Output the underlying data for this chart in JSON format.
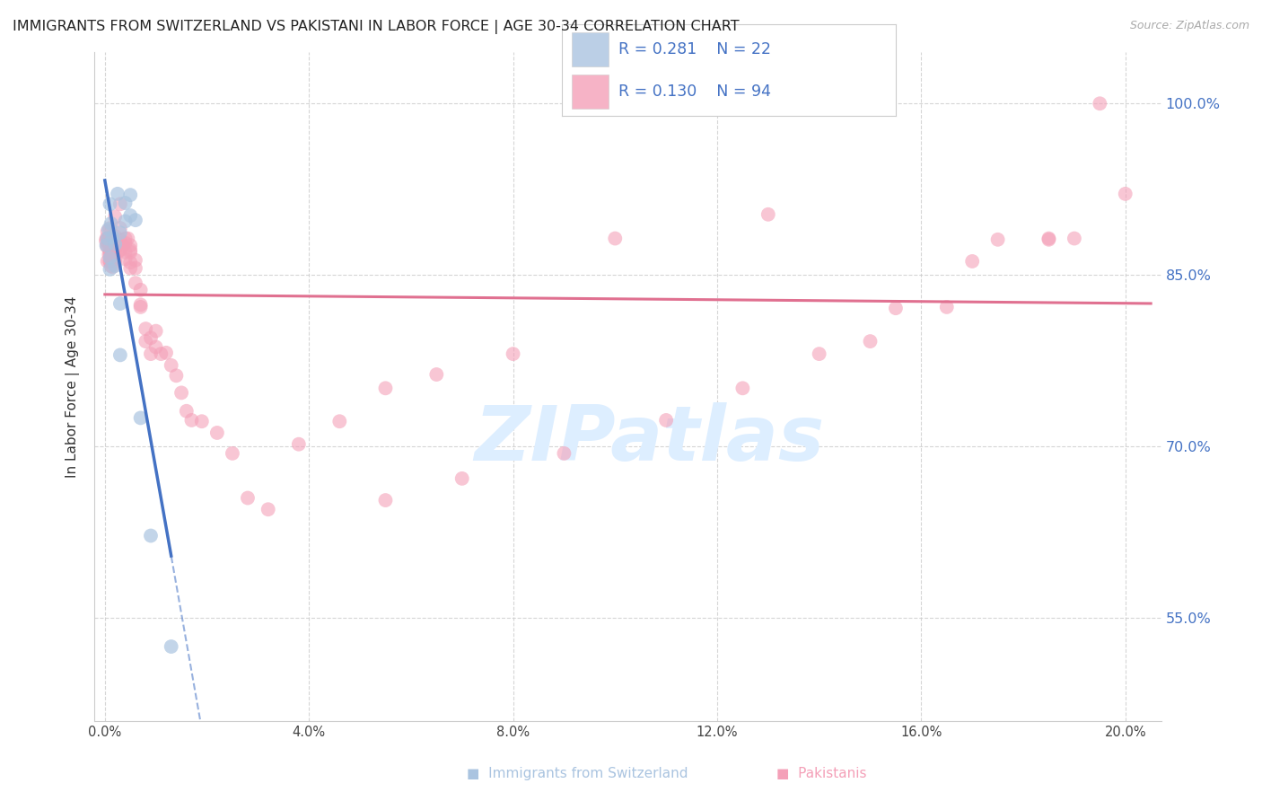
{
  "title": "IMMIGRANTS FROM SWITZERLAND VS PAKISTANI IN LABOR FORCE | AGE 30-34 CORRELATION CHART",
  "source": "Source: ZipAtlas.com",
  "ylabel": "In Labor Force | Age 30-34",
  "right_ytick_vals": [
    0.55,
    0.7,
    0.85,
    1.0
  ],
  "right_ytick_labels": [
    "55.0%",
    "70.0%",
    "85.0%",
    "100.0%"
  ],
  "xtick_vals": [
    0.0,
    0.04,
    0.08,
    0.12,
    0.16,
    0.2
  ],
  "xtick_labels": [
    "0.0%",
    "4.0%",
    "8.0%",
    "12.0%",
    "16.0%",
    "20.0%"
  ],
  "xlim": [
    -0.002,
    0.207
  ],
  "ylim": [
    0.46,
    1.045
  ],
  "swiss_R": 0.281,
  "swiss_N": 22,
  "pak_R": 0.13,
  "pak_N": 94,
  "swiss_scatter_color": "#aac4e0",
  "swiss_line_color": "#4472c4",
  "pak_scatter_color": "#f4a0b8",
  "pak_line_color": "#e07090",
  "legend_text_color": "#4472c4",
  "legend_R_color": "#4472c4",
  "watermark": "ZIPatlas",
  "watermark_color": "#ddeeff",
  "grid_color": "#cccccc",
  "bg_color": "#ffffff",
  "title_color": "#222222",
  "source_color": "#aaaaaa",
  "ylabel_color": "#333333",
  "tick_label_color": "#4472c4",
  "swiss_label": "Immigrants from Switzerland",
  "pak_label": "Pakistanis",
  "swiss_x": [
    0.0003,
    0.0005,
    0.0007,
    0.001,
    0.001,
    0.001,
    0.0012,
    0.0015,
    0.002,
    0.002,
    0.0025,
    0.003,
    0.003,
    0.003,
    0.004,
    0.004,
    0.005,
    0.005,
    0.006,
    0.007,
    0.009,
    0.013
  ],
  "swiss_y": [
    0.876,
    0.882,
    0.89,
    0.912,
    0.865,
    0.855,
    0.895,
    0.883,
    0.877,
    0.858,
    0.921,
    0.825,
    0.887,
    0.78,
    0.913,
    0.897,
    0.92,
    0.902,
    0.898,
    0.725,
    0.622,
    0.525
  ],
  "pak_x": [
    0.0002,
    0.0003,
    0.0004,
    0.0005,
    0.0005,
    0.0006,
    0.0007,
    0.0008,
    0.0009,
    0.001,
    0.001,
    0.001,
    0.001,
    0.001,
    0.001,
    0.001,
    0.001,
    0.001,
    0.001,
    0.001,
    0.0012,
    0.0013,
    0.0015,
    0.0015,
    0.0017,
    0.002,
    0.002,
    0.002,
    0.002,
    0.002,
    0.0022,
    0.0025,
    0.003,
    0.003,
    0.003,
    0.003,
    0.0035,
    0.004,
    0.004,
    0.004,
    0.004,
    0.0045,
    0.005,
    0.005,
    0.005,
    0.005,
    0.005,
    0.006,
    0.006,
    0.006,
    0.007,
    0.007,
    0.007,
    0.008,
    0.008,
    0.009,
    0.009,
    0.01,
    0.01,
    0.011,
    0.012,
    0.013,
    0.014,
    0.015,
    0.016,
    0.017,
    0.019,
    0.022,
    0.025,
    0.028,
    0.032,
    0.038,
    0.046,
    0.055,
    0.065,
    0.08,
    0.1,
    0.13,
    0.15,
    0.165,
    0.175,
    0.185,
    0.19,
    0.195,
    0.2,
    0.185,
    0.17,
    0.155,
    0.14,
    0.125,
    0.11,
    0.09,
    0.07,
    0.055
  ],
  "pak_y": [
    0.88,
    0.882,
    0.875,
    0.862,
    0.888,
    0.876,
    0.882,
    0.868,
    0.877,
    0.882,
    0.876,
    0.871,
    0.862,
    0.891,
    0.876,
    0.868,
    0.877,
    0.862,
    0.871,
    0.882,
    0.858,
    0.875,
    0.857,
    0.874,
    0.868,
    0.901,
    0.879,
    0.872,
    0.884,
    0.862,
    0.875,
    0.87,
    0.912,
    0.881,
    0.872,
    0.891,
    0.876,
    0.882,
    0.864,
    0.878,
    0.87,
    0.882,
    0.872,
    0.861,
    0.856,
    0.876,
    0.87,
    0.843,
    0.856,
    0.863,
    0.824,
    0.837,
    0.822,
    0.803,
    0.792,
    0.795,
    0.781,
    0.801,
    0.787,
    0.781,
    0.782,
    0.771,
    0.762,
    0.747,
    0.731,
    0.723,
    0.722,
    0.712,
    0.694,
    0.655,
    0.645,
    0.702,
    0.722,
    0.751,
    0.763,
    0.781,
    0.882,
    0.903,
    0.792,
    0.822,
    0.881,
    0.882,
    0.882,
    1.001,
    0.921,
    0.881,
    0.862,
    0.821,
    0.781,
    0.751,
    0.723,
    0.694,
    0.672,
    0.653
  ]
}
